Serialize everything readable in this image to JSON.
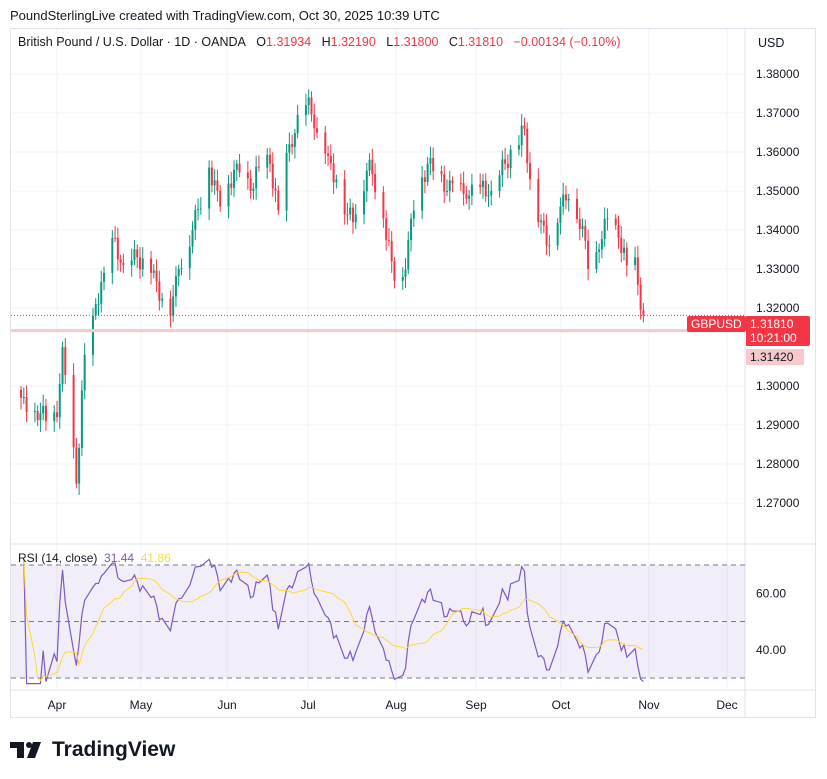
{
  "header": {
    "credit": "PoundSterlingLive created with TradingView.com, Oct 30, 2025 10:39 UTC"
  },
  "legend": {
    "symbol": "British Pound / U.S. Dollar · 1D · OANDA",
    "o_label": "O",
    "o": "1.31934",
    "h_label": "H",
    "h": "1.32190",
    "l_label": "L",
    "l": "1.31800",
    "c_label": "C",
    "c": "1.31810",
    "change": "−0.00134 (−0.10%)"
  },
  "currency": "USD",
  "price_tag": {
    "symbol": "GBPUSD",
    "price": "1.31810",
    "countdown": "10:21:00",
    "level": "1.31420"
  },
  "rsi": {
    "label": "RSI (14, close)",
    "value": "31.44",
    "ma": "41.86"
  },
  "colors": {
    "up": "#089981",
    "down": "#f23645",
    "rsi": "#7e57c2",
    "rsi_ma": "#fdd835"
  },
  "logo": "TradingView",
  "chart_data": {
    "type": "candlestick",
    "title": "British Pound / U.S. Dollar · 1D · OANDA",
    "ylim": [
      1.262,
      1.389
    ],
    "y_ticks": [
      "1.38000",
      "1.37000",
      "1.36000",
      "1.35000",
      "1.34000",
      "1.33000",
      "1.32000",
      "1.30000",
      "1.29000",
      "1.28000",
      "1.27000"
    ],
    "x_ticks": [
      "Apr",
      "May",
      "Jun",
      "Jul",
      "Aug",
      "Sep",
      "Oct",
      "Nov",
      "Dec"
    ],
    "rsi_ticks": [
      "60.00",
      "40.00"
    ],
    "horizontal_line": 1.3142,
    "close_keypoints": [
      [
        "03-19",
        1.297
      ],
      [
        "03-26",
        1.293
      ],
      [
        "04-01",
        1.292
      ],
      [
        "04-03",
        1.31
      ],
      [
        "04-08",
        1.275
      ],
      [
        "04-11",
        1.308
      ],
      [
        "04-14",
        1.318
      ],
      [
        "04-18",
        1.329
      ],
      [
        "04-21",
        1.338
      ],
      [
        "04-25",
        1.331
      ],
      [
        "04-30",
        1.333
      ],
      [
        "05-05",
        1.329
      ],
      [
        "05-12",
        1.318
      ],
      [
        "05-15",
        1.33
      ],
      [
        "05-20",
        1.34
      ],
      [
        "05-26",
        1.356
      ],
      [
        "05-30",
        1.346
      ],
      [
        "06-05",
        1.357
      ],
      [
        "06-10",
        1.35
      ],
      [
        "06-13",
        1.356
      ],
      [
        "06-17",
        1.357
      ],
      [
        "06-20",
        1.345
      ],
      [
        "06-24",
        1.362
      ],
      [
        "06-30",
        1.372
      ],
      [
        "07-01",
        1.374
      ],
      [
        "07-04",
        1.365
      ],
      [
        "07-08",
        1.359
      ],
      [
        "07-15",
        1.344
      ],
      [
        "07-18",
        1.344
      ],
      [
        "07-23",
        1.358
      ],
      [
        "07-28",
        1.343
      ],
      [
        "08-01",
        1.327
      ],
      [
        "08-04",
        1.328
      ],
      [
        "08-08",
        1.345
      ],
      [
        "08-13",
        1.357
      ],
      [
        "08-20",
        1.35
      ],
      [
        "08-22",
        1.352
      ],
      [
        "08-27",
        1.348
      ],
      [
        "09-01",
        1.351
      ],
      [
        "09-05",
        1.35
      ],
      [
        "09-10",
        1.357
      ],
      [
        "09-17",
        1.366
      ],
      [
        "09-19",
        1.353
      ],
      [
        "09-25",
        1.336
      ],
      [
        "09-30",
        1.346
      ],
      [
        "10-03",
        1.348
      ],
      [
        "10-08",
        1.341
      ],
      [
        "10-10",
        1.33
      ],
      [
        "10-14",
        1.335
      ],
      [
        "10-17",
        1.343
      ],
      [
        "10-21",
        1.338
      ],
      [
        "10-24",
        1.331
      ],
      [
        "10-27",
        1.333
      ],
      [
        "10-29",
        1.3195
      ],
      [
        "10-30",
        1.3181
      ]
    ]
  }
}
